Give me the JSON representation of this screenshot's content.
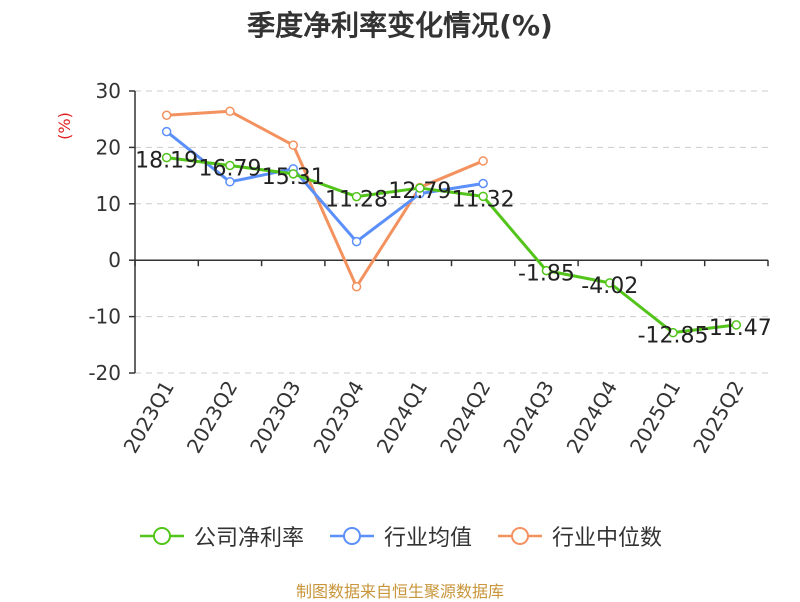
{
  "chart_data": {
    "type": "line",
    "title": "季度净利率变化情况(%)",
    "ylabel": "(%)",
    "xlabel": "",
    "categories": [
      "2023Q1",
      "2023Q2",
      "2023Q3",
      "2023Q4",
      "2024Q1",
      "2024Q2",
      "2024Q3",
      "2024Q4",
      "2025Q1",
      "2025Q2"
    ],
    "ylim": [
      -20,
      30
    ],
    "yticks": [
      -20,
      -10,
      0,
      10,
      20,
      30
    ],
    "grid": true,
    "legend_position": "bottom",
    "series": [
      {
        "name": "公司净利率",
        "color": "#52c41a",
        "values": [
          18.19,
          16.79,
          15.31,
          11.28,
          12.79,
          11.32,
          -1.85,
          -4.02,
          -12.85,
          -11.47
        ],
        "labels": [
          "18.19",
          "16.79",
          "15.31",
          "11.28",
          "12.79",
          "11.32",
          "-1.85",
          "-4.02",
          "-12.85",
          "-11.47"
        ]
      },
      {
        "name": "行业均值",
        "color": "#5b8ff9",
        "values": [
          22.8,
          13.9,
          16.2,
          3.3,
          11.8,
          13.6,
          null,
          null,
          null,
          null
        ]
      },
      {
        "name": "行业中位数",
        "color": "#f4925f",
        "values": [
          25.7,
          26.4,
          20.4,
          -4.7,
          12.9,
          17.6,
          null,
          null,
          null,
          null
        ]
      }
    ],
    "source": "制图数据来自恒生聚源数据库",
    "source_color": "#c8953a",
    "ylabel_color": "#e02020"
  }
}
